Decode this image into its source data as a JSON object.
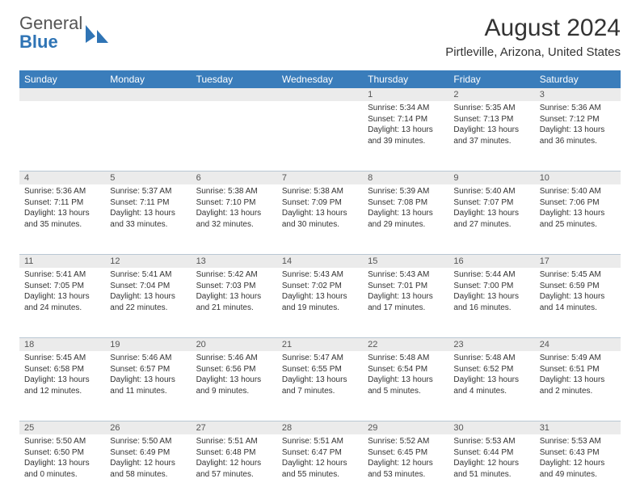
{
  "brand": {
    "part1": "General",
    "part2": "Blue"
  },
  "title": "August 2024",
  "location": "Pirtleville, Arizona, United States",
  "header_bg": "#3a7dbb",
  "header_fg": "#ffffff",
  "daynum_bg": "#ebebeb",
  "row_border": "#b9c7d3",
  "weekdays": [
    "Sunday",
    "Monday",
    "Tuesday",
    "Wednesday",
    "Thursday",
    "Friday",
    "Saturday"
  ],
  "weeks": [
    [
      null,
      null,
      null,
      null,
      {
        "n": "1",
        "sr": "5:34 AM",
        "ss": "7:14 PM",
        "dl": "13 hours and 39 minutes."
      },
      {
        "n": "2",
        "sr": "5:35 AM",
        "ss": "7:13 PM",
        "dl": "13 hours and 37 minutes."
      },
      {
        "n": "3",
        "sr": "5:36 AM",
        "ss": "7:12 PM",
        "dl": "13 hours and 36 minutes."
      }
    ],
    [
      {
        "n": "4",
        "sr": "5:36 AM",
        "ss": "7:11 PM",
        "dl": "13 hours and 35 minutes."
      },
      {
        "n": "5",
        "sr": "5:37 AM",
        "ss": "7:11 PM",
        "dl": "13 hours and 33 minutes."
      },
      {
        "n": "6",
        "sr": "5:38 AM",
        "ss": "7:10 PM",
        "dl": "13 hours and 32 minutes."
      },
      {
        "n": "7",
        "sr": "5:38 AM",
        "ss": "7:09 PM",
        "dl": "13 hours and 30 minutes."
      },
      {
        "n": "8",
        "sr": "5:39 AM",
        "ss": "7:08 PM",
        "dl": "13 hours and 29 minutes."
      },
      {
        "n": "9",
        "sr": "5:40 AM",
        "ss": "7:07 PM",
        "dl": "13 hours and 27 minutes."
      },
      {
        "n": "10",
        "sr": "5:40 AM",
        "ss": "7:06 PM",
        "dl": "13 hours and 25 minutes."
      }
    ],
    [
      {
        "n": "11",
        "sr": "5:41 AM",
        "ss": "7:05 PM",
        "dl": "13 hours and 24 minutes."
      },
      {
        "n": "12",
        "sr": "5:41 AM",
        "ss": "7:04 PM",
        "dl": "13 hours and 22 minutes."
      },
      {
        "n": "13",
        "sr": "5:42 AM",
        "ss": "7:03 PM",
        "dl": "13 hours and 21 minutes."
      },
      {
        "n": "14",
        "sr": "5:43 AM",
        "ss": "7:02 PM",
        "dl": "13 hours and 19 minutes."
      },
      {
        "n": "15",
        "sr": "5:43 AM",
        "ss": "7:01 PM",
        "dl": "13 hours and 17 minutes."
      },
      {
        "n": "16",
        "sr": "5:44 AM",
        "ss": "7:00 PM",
        "dl": "13 hours and 16 minutes."
      },
      {
        "n": "17",
        "sr": "5:45 AM",
        "ss": "6:59 PM",
        "dl": "13 hours and 14 minutes."
      }
    ],
    [
      {
        "n": "18",
        "sr": "5:45 AM",
        "ss": "6:58 PM",
        "dl": "13 hours and 12 minutes."
      },
      {
        "n": "19",
        "sr": "5:46 AM",
        "ss": "6:57 PM",
        "dl": "13 hours and 11 minutes."
      },
      {
        "n": "20",
        "sr": "5:46 AM",
        "ss": "6:56 PM",
        "dl": "13 hours and 9 minutes."
      },
      {
        "n": "21",
        "sr": "5:47 AM",
        "ss": "6:55 PM",
        "dl": "13 hours and 7 minutes."
      },
      {
        "n": "22",
        "sr": "5:48 AM",
        "ss": "6:54 PM",
        "dl": "13 hours and 5 minutes."
      },
      {
        "n": "23",
        "sr": "5:48 AM",
        "ss": "6:52 PM",
        "dl": "13 hours and 4 minutes."
      },
      {
        "n": "24",
        "sr": "5:49 AM",
        "ss": "6:51 PM",
        "dl": "13 hours and 2 minutes."
      }
    ],
    [
      {
        "n": "25",
        "sr": "5:50 AM",
        "ss": "6:50 PM",
        "dl": "13 hours and 0 minutes."
      },
      {
        "n": "26",
        "sr": "5:50 AM",
        "ss": "6:49 PM",
        "dl": "12 hours and 58 minutes."
      },
      {
        "n": "27",
        "sr": "5:51 AM",
        "ss": "6:48 PM",
        "dl": "12 hours and 57 minutes."
      },
      {
        "n": "28",
        "sr": "5:51 AM",
        "ss": "6:47 PM",
        "dl": "12 hours and 55 minutes."
      },
      {
        "n": "29",
        "sr": "5:52 AM",
        "ss": "6:45 PM",
        "dl": "12 hours and 53 minutes."
      },
      {
        "n": "30",
        "sr": "5:53 AM",
        "ss": "6:44 PM",
        "dl": "12 hours and 51 minutes."
      },
      {
        "n": "31",
        "sr": "5:53 AM",
        "ss": "6:43 PM",
        "dl": "12 hours and 49 minutes."
      }
    ]
  ]
}
